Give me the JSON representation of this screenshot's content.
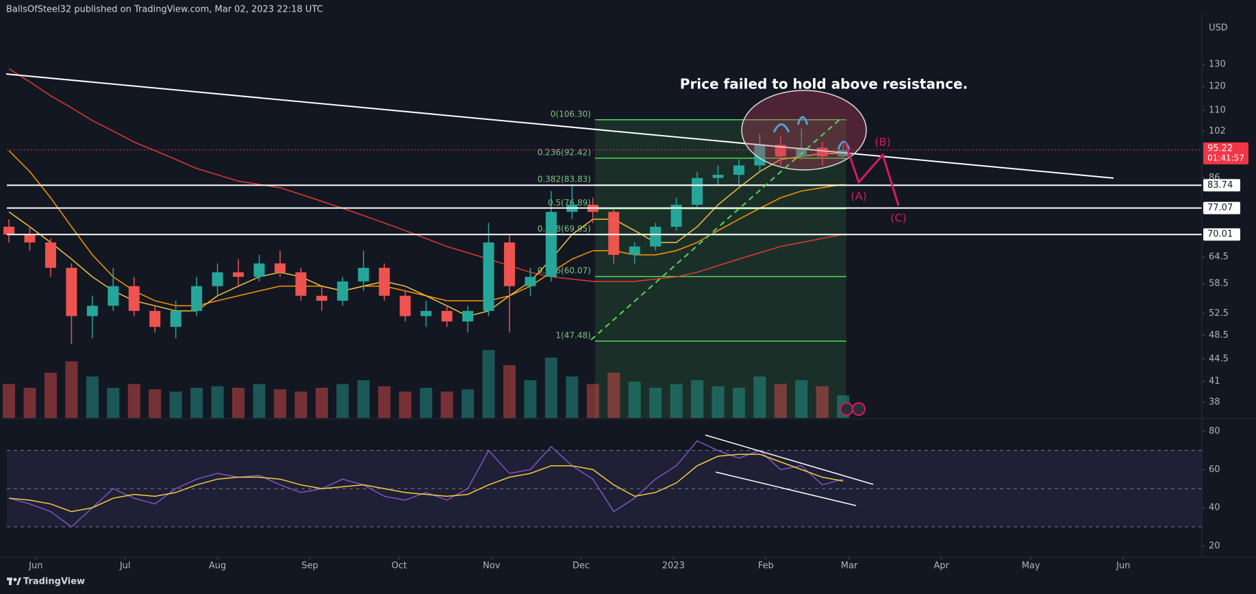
{
  "header": {
    "publisher": "BallsOfSteel32 published on TradingView.com, Mar 02, 2023 22:18 UTC"
  },
  "footer": {
    "brand": "TradingView"
  },
  "chart_data": [
    {
      "type": "candlestick",
      "currency": "USD",
      "log_scale": true,
      "up_color": "#26a69a",
      "down_color": "#ef5350",
      "xlim": [
        -0.1,
        57.2
      ],
      "xticks": [
        {
          "value": 1.29,
          "label": "Jun"
        },
        {
          "value": 5.57,
          "label": "Jul"
        },
        {
          "value": 10,
          "label": "Aug"
        },
        {
          "value": 14.43,
          "label": "Sep"
        },
        {
          "value": 18.71,
          "label": "Oct"
        },
        {
          "value": 23.14,
          "label": "Nov"
        },
        {
          "value": 27.43,
          "label": "Dec"
        },
        {
          "value": 31.86,
          "label": "2023"
        },
        {
          "value": 36.29,
          "label": "Feb"
        },
        {
          "value": 40.29,
          "label": "Mar"
        },
        {
          "value": 44.71,
          "label": "Apr"
        },
        {
          "value": 49,
          "label": "May"
        },
        {
          "value": 53.43,
          "label": "Jun"
        }
      ],
      "ylim": [
        35.9,
        152.9
      ],
      "yticks": [
        38,
        41,
        44.5,
        48.5,
        52.5,
        58.5,
        64.5,
        86,
        102,
        110,
        120,
        130
      ],
      "open": [
        72,
        70,
        68,
        62,
        52,
        54,
        58,
        53,
        50,
        53,
        58,
        61,
        60,
        63,
        61,
        56,
        55,
        59,
        62,
        56,
        52,
        53,
        51,
        53,
        68,
        58,
        60,
        76,
        78,
        76,
        65,
        67,
        72,
        78,
        86,
        87,
        90,
        97,
        93,
        96,
        93
      ],
      "high": [
        74,
        72,
        69,
        63,
        56,
        62,
        60,
        54,
        55,
        60,
        63,
        64,
        65,
        66,
        62,
        58,
        60,
        66,
        63,
        57,
        55,
        54,
        54,
        73,
        70,
        62,
        82,
        84,
        80,
        77,
        68,
        73,
        80,
        88,
        90,
        92,
        101,
        100,
        103,
        98,
        97
      ],
      "low": [
        68,
        66,
        60,
        47,
        48,
        53,
        52,
        49,
        48,
        52,
        56,
        58,
        59,
        60,
        55,
        53,
        54,
        57,
        55,
        51,
        50,
        50,
        49,
        52,
        49,
        56,
        59,
        74,
        73,
        63,
        63,
        66,
        71,
        77,
        84,
        84,
        88,
        90,
        92,
        90,
        92
      ],
      "close": [
        70,
        68,
        62,
        52,
        54,
        58,
        53,
        50,
        53,
        58,
        61,
        60,
        63,
        61,
        56,
        55,
        59,
        62,
        56,
        52,
        53,
        51,
        53,
        68,
        58,
        60,
        76,
        78,
        76,
        65,
        67,
        72,
        78,
        86,
        87,
        90,
        97,
        93,
        96,
        93,
        95.22
      ],
      "volume": [
        45,
        40,
        60,
        75,
        55,
        40,
        45,
        38,
        35,
        40,
        42,
        40,
        45,
        38,
        35,
        40,
        45,
        50,
        42,
        35,
        40,
        35,
        38,
        90,
        70,
        50,
        80,
        55,
        45,
        60,
        48,
        40,
        45,
        50,
        42,
        40,
        55,
        45,
        50,
        42,
        30
      ],
      "series": [
        {
          "color": "#e53935",
          "values": [
            128,
            122,
            116,
            111,
            106,
            102,
            98,
            95,
            92,
            89,
            87,
            85,
            84,
            83,
            81,
            79,
            77,
            75,
            73,
            71,
            69,
            67,
            65.5,
            64,
            62.5,
            61,
            60,
            59.5,
            59,
            59,
            59,
            59.5,
            60,
            61,
            62.5,
            64,
            65.5,
            67,
            68,
            69,
            70
          ]
        },
        {
          "color": "#ff9800",
          "values": [
            95,
            88,
            80,
            72,
            65,
            60,
            57,
            55,
            54,
            54,
            55,
            56,
            57,
            58,
            58,
            58,
            57,
            58,
            58,
            57,
            56,
            55,
            55,
            55,
            56,
            58,
            61,
            64,
            66,
            66,
            65,
            65,
            66,
            68,
            71,
            74,
            77,
            80,
            82,
            83,
            84
          ]
        },
        {
          "color": "#f5c542",
          "values": [
            76,
            72,
            68,
            64,
            60,
            57,
            55,
            54,
            53,
            53,
            56,
            58,
            60,
            61,
            60,
            58,
            57,
            58,
            59,
            58,
            56,
            54,
            52,
            53,
            56,
            59,
            64,
            70,
            74,
            74,
            71,
            68,
            68,
            72,
            78,
            83,
            88,
            92,
            93,
            94,
            94
          ]
        }
      ],
      "levels": [
        83.74,
        77.07,
        70.01
      ],
      "last_price": {
        "value": 95.22,
        "countdown": "01:41:57"
      },
      "fib": {
        "range": [
          28.1,
          40.15
        ],
        "levels": [
          {
            "value": 106.3,
            "label": "0(106.30)"
          },
          {
            "value": 92.42,
            "label": "0.236(92.42)"
          },
          {
            "value": 83.83,
            "label": "0.382(83.83)"
          },
          {
            "value": 76.89,
            "label": "0.5(76.89)"
          },
          {
            "value": 69.95,
            "label": "0.618(69.95)"
          },
          {
            "value": 60.07,
            "label": "0.786(60.07)"
          },
          {
            "value": 47.48,
            "label": "1(47.48)"
          }
        ]
      },
      "annotations": {
        "note": "Price failed to hold above resistance.",
        "a": "(A)",
        "b": "(B)",
        "c": "(C)"
      }
    },
    {
      "type": "line",
      "xlim": [
        -0.1,
        57.2
      ],
      "ylim": [
        14.2,
        86.7
      ],
      "yticks": [
        20,
        40,
        60,
        80
      ],
      "bands": [
        70,
        50,
        30
      ],
      "series": [
        {
          "color": "#7e57c2",
          "values": [
            45,
            42,
            38,
            30,
            40,
            50,
            45,
            42,
            50,
            55,
            58,
            56,
            57,
            52,
            48,
            50,
            55,
            52,
            46,
            44,
            48,
            44,
            50,
            70,
            58,
            60,
            72,
            62,
            55,
            38,
            45,
            55,
            62,
            75,
            70,
            66,
            70,
            60,
            62,
            52,
            55
          ]
        },
        {
          "color": "#f5d142",
          "values": [
            45,
            44,
            42,
            38,
            40,
            45,
            47,
            46,
            48,
            52,
            55,
            56,
            56,
            55,
            52,
            50,
            51,
            52,
            50,
            48,
            47,
            46,
            47,
            52,
            56,
            58,
            62,
            62,
            60,
            52,
            46,
            48,
            53,
            62,
            67,
            68,
            68,
            64,
            60,
            56,
            54
          ]
        }
      ]
    }
  ]
}
